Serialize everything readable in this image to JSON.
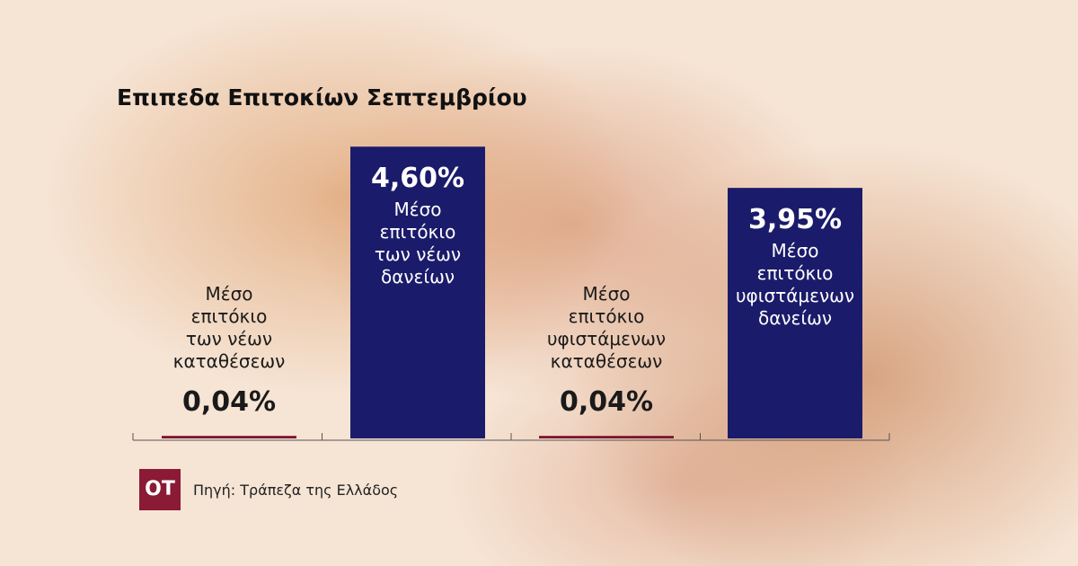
{
  "chart_data": {
    "type": "bar",
    "title": "Επιπεδα Επιτοκίων Σεπτεμβρίου",
    "categories": [
      "Μέσο\nεπιτόκιο\nτων νέων\nκαταθέσεων",
      "Μέσο\nεπιτόκιο\nτων νέων\nδανείων",
      "Μέσο\nεπιτόκιο\nυφιστάμενων\nκαταθέσεων",
      "Μέσο\nεπιτόκιο\nυφιστάμενων\nδανείων"
    ],
    "values": [
      0.04,
      4.6,
      0.04,
      3.95
    ],
    "value_labels": [
      "0,04%",
      "4,60%",
      "0,04%",
      "3,95%"
    ],
    "colors": [
      "#7d1430",
      "#1b1b6b",
      "#7d1430",
      "#1b1b6b"
    ],
    "source": "Πηγή: Τράπεζα της Ελλάδος",
    "logo": "ΟΤ"
  }
}
